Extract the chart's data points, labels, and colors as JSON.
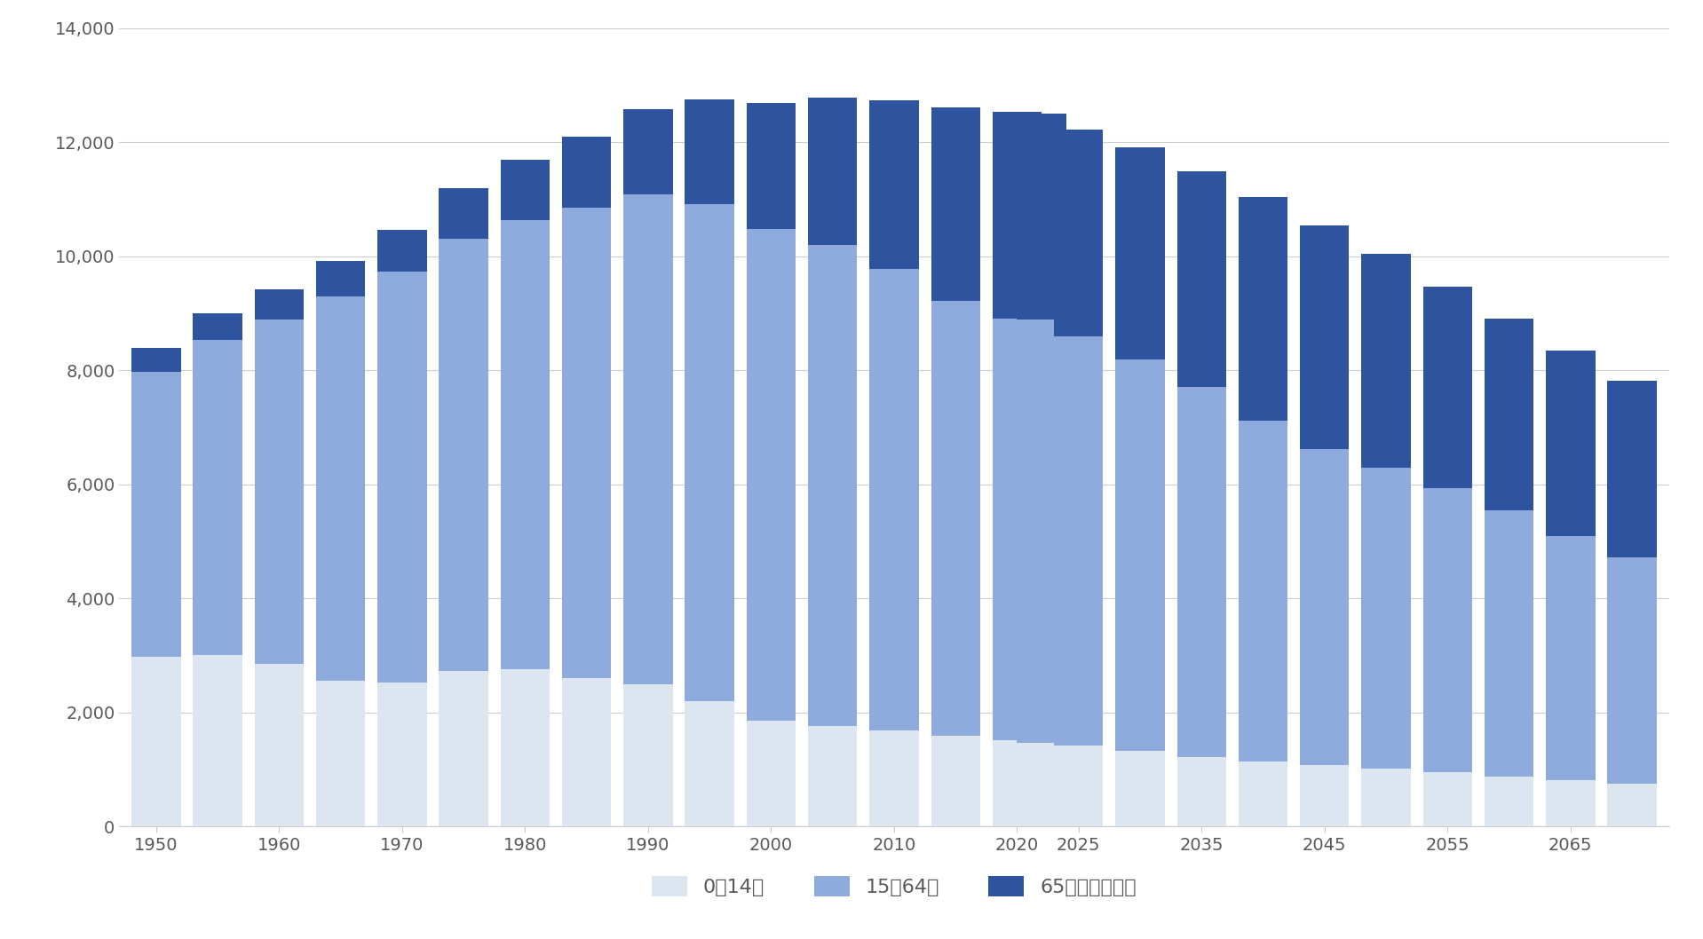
{
  "years": [
    1950,
    1955,
    1960,
    1965,
    1970,
    1975,
    1980,
    1985,
    1990,
    1995,
    2000,
    2005,
    2010,
    2015,
    2020,
    2022,
    2025,
    2030,
    2035,
    2040,
    2045,
    2050,
    2055,
    2060,
    2065,
    2070
  ],
  "age_0_14": [
    2979,
    3012,
    2843,
    2553,
    2515,
    2722,
    2751,
    2603,
    2494,
    2201,
    1847,
    1759,
    1680,
    1595,
    1503,
    1465,
    1417,
    1321,
    1218,
    1141,
    1076,
    1009,
    946,
    875,
    807,
    749
  ],
  "age_15_64": [
    4994,
    5517,
    6047,
    6744,
    7212,
    7581,
    7883,
    8251,
    8590,
    8716,
    8638,
    8442,
    8103,
    7629,
    7406,
    7421,
    7170,
    6875,
    6494,
    5978,
    5540,
    5275,
    4991,
    4669,
    4291,
    3967
  ],
  "age_65plus": [
    411,
    476,
    535,
    625,
    739,
    887,
    1065,
    1247,
    1489,
    1826,
    2204,
    2576,
    2948,
    3387,
    3619,
    3623,
    3640,
    3716,
    3782,
    3921,
    3919,
    3762,
    3531,
    3367,
    3245,
    3095
  ],
  "color_0_14": "#dce6f1",
  "color_15_64": "#8faadc",
  "color_65plus": "#2e54a0",
  "bar_width": 4.0,
  "ylim": [
    0,
    14000
  ],
  "yticks": [
    0,
    2000,
    4000,
    6000,
    8000,
    10000,
    12000,
    14000
  ],
  "xtick_labels_years": [
    1950,
    1960,
    1970,
    1980,
    1990,
    2000,
    2010,
    2020,
    2025,
    2035,
    2045,
    2055,
    2065
  ],
  "legend_labels": [
    "0～14歳",
    "15～64歳",
    "65歳以上（計）"
  ],
  "background_color": "#ffffff",
  "grid_color": "#cccccc",
  "text_color": "#595959"
}
